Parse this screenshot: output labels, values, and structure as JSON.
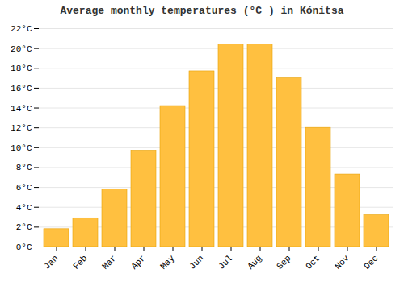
{
  "chart_data": {
    "type": "bar",
    "title": "Average monthly temperatures (°C ) in Kónitsa",
    "categories": [
      "Jan",
      "Feb",
      "Mar",
      "Apr",
      "May",
      "Jun",
      "Jul",
      "Aug",
      "Sep",
      "Oct",
      "Nov",
      "Dec"
    ],
    "values": [
      1.8,
      2.9,
      5.8,
      9.7,
      14.2,
      17.7,
      20.4,
      20.4,
      17.0,
      12.0,
      7.3,
      3.2
    ],
    "color": "#FFC040",
    "ylim": [
      0,
      22
    ],
    "yticks": [
      {
        "value": 0,
        "label": "0°C"
      },
      {
        "value": 2,
        "label": "2°C"
      },
      {
        "value": 4,
        "label": "4°C"
      },
      {
        "value": 6,
        "label": "6°C"
      },
      {
        "value": 8,
        "label": "8°C"
      },
      {
        "value": 10,
        "label": "10°C"
      },
      {
        "value": 12,
        "label": "12°C"
      },
      {
        "value": 14,
        "label": "14°C"
      },
      {
        "value": 16,
        "label": "16°C"
      },
      {
        "value": 18,
        "label": "18°C"
      },
      {
        "value": 20,
        "label": "20°C"
      },
      {
        "value": 22,
        "label": "22°C"
      }
    ],
    "grid": true
  }
}
